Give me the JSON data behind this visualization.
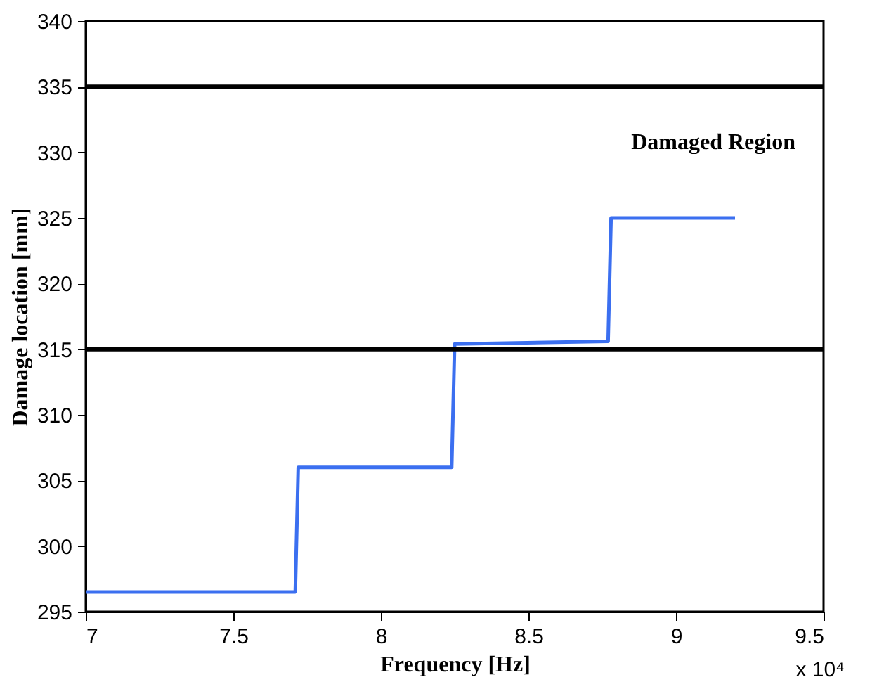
{
  "chart_data": {
    "type": "line",
    "xlabel": "Frequency [Hz]",
    "ylabel": "Damage location [mm]",
    "x": [
      7,
      7.71,
      7.72,
      8.24,
      8.25,
      8.77,
      8.78,
      9.2
    ],
    "series": [
      {
        "color": "#3b6ff0",
        "values": [
          296.5,
          296.5,
          306,
          306,
          315.4,
          315.6,
          325,
          325
        ]
      }
    ],
    "xlim": [
      7,
      9.5
    ],
    "xticks": [
      7,
      7.5,
      8,
      8.5,
      9,
      9.5
    ],
    "ylim": [
      295,
      340
    ],
    "yticks": [
      295,
      300,
      305,
      310,
      315,
      320,
      325,
      330,
      335,
      340
    ],
    "ref_lines": [
      {
        "axis": "y",
        "value": 335,
        "color": "#000000"
      },
      {
        "axis": "y",
        "value": 315,
        "color": "#000000"
      }
    ],
    "annotations": [
      "Damaged Region",
      "x 10⁴"
    ],
    "grid": false,
    "marker": "none",
    "line_style": "solid"
  }
}
